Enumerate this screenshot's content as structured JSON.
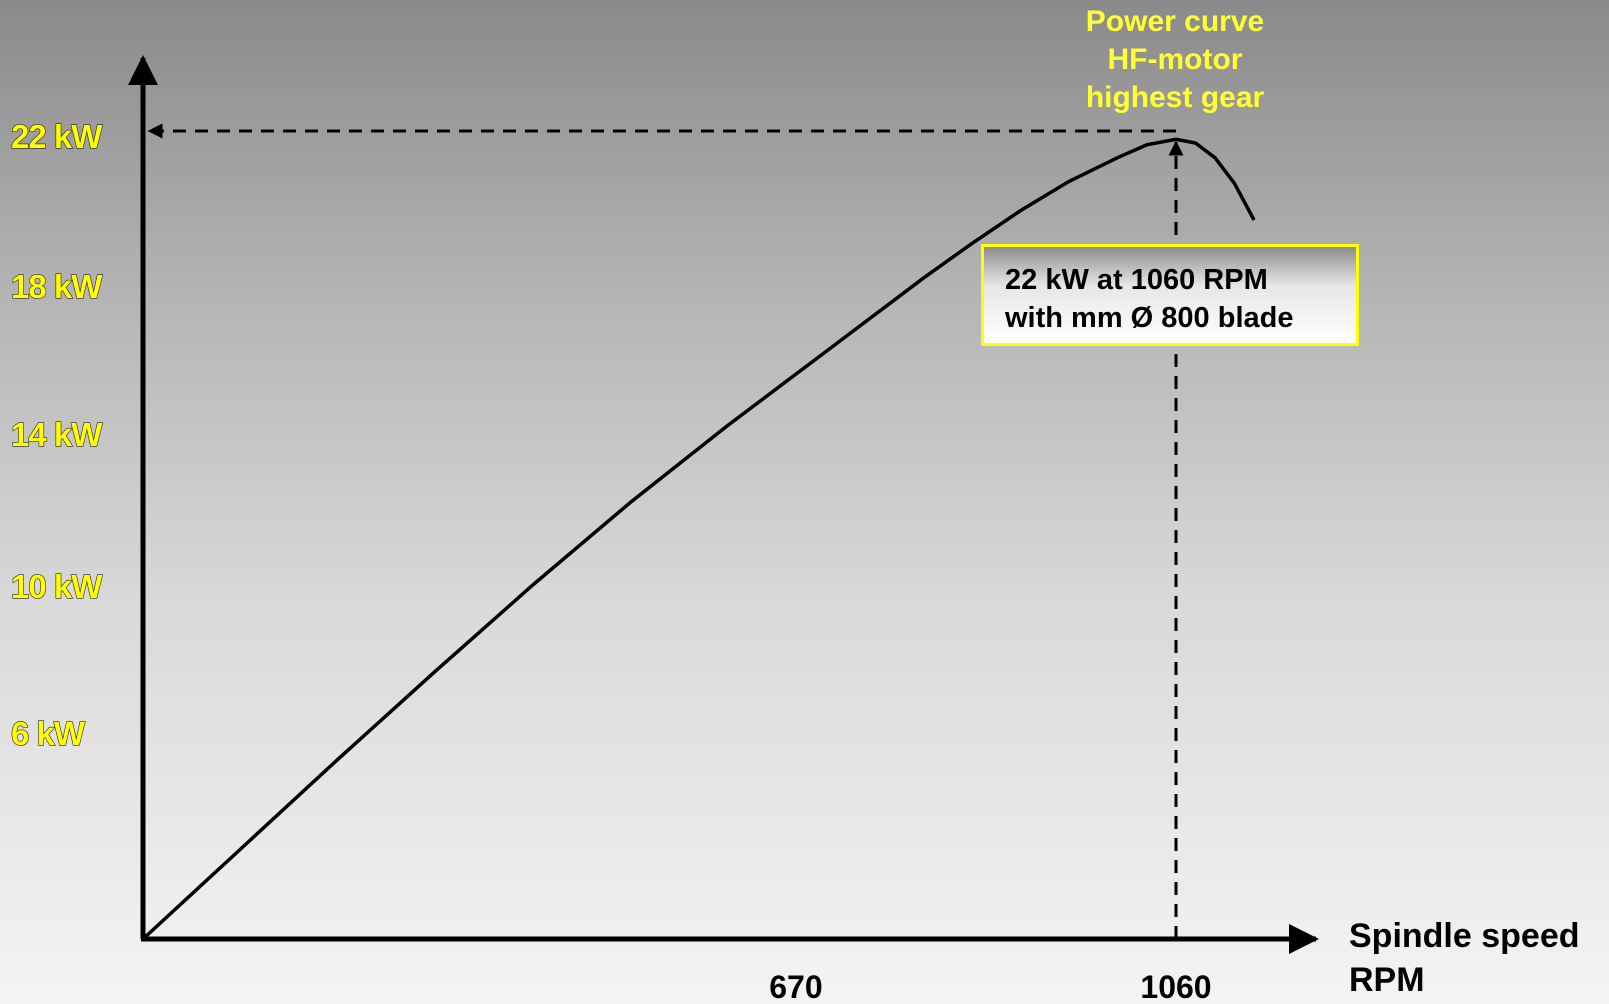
{
  "chart_data": {
    "type": "line",
    "title_lines": [
      "Power curve",
      "HF-motor",
      "highest gear"
    ],
    "xlabel_lines": [
      "Spindle speed",
      "RPM"
    ],
    "ylabel": "",
    "x_ticks": [
      {
        "value": 670,
        "label": "670"
      },
      {
        "value": 1060,
        "label": "1060"
      }
    ],
    "y_ticks": [
      {
        "value": 6,
        "label": "6 kW"
      },
      {
        "value": 10,
        "label": "10 kW"
      },
      {
        "value": 14,
        "label": "14 kW"
      },
      {
        "value": 18,
        "label": "18 kW"
      },
      {
        "value": 22,
        "label": "22 kW"
      }
    ],
    "xlim": [
      0,
      1250
    ],
    "ylim": [
      0,
      24
    ],
    "grid": false,
    "series": [
      {
        "x": [
          0,
          100,
          200,
          300,
          400,
          500,
          600,
          670,
          700,
          750,
          800,
          850,
          900,
          950,
          1000,
          1030,
          1060,
          1080,
          1100,
          1120,
          1140
        ],
        "y": [
          0,
          2.45,
          4.9,
          7.3,
          9.65,
          11.9,
          14.0,
          15.4,
          16.0,
          17.0,
          18.0,
          18.95,
          19.85,
          20.65,
          21.3,
          21.65,
          21.8,
          21.7,
          21.3,
          20.6,
          19.6
        ]
      }
    ],
    "peak": {
      "x": 1060,
      "y": 22
    },
    "annotation_lines": [
      "22 kW at 1060 RPM",
      "with mm Ø 800 blade"
    ],
    "colors": {
      "curve": "#000000",
      "tick_label": "#ffff00",
      "title": "#ffff33",
      "annotation_border": "#ffff00"
    }
  }
}
